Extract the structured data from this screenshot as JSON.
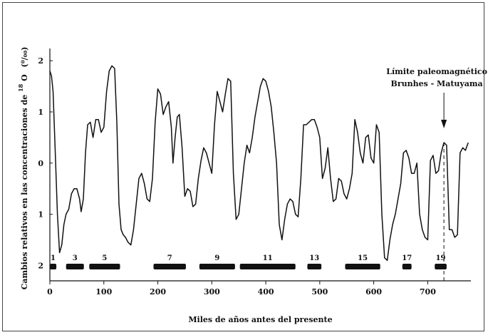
{
  "chart_data": {
    "type": "line",
    "title": "",
    "xlabel": "Miles de años antes del presente",
    "ylabel_main": "Cambios relativos en las concentraciones de",
    "ylabel_sup": "18",
    "ylabel_symbol": "O",
    "ylabel_unit": "(⁰/₀₀)",
    "xlim": [
      0,
      780
    ],
    "ylim": [
      -2.3,
      2.1
    ],
    "x_ticks": [
      0,
      100,
      200,
      300,
      400,
      500,
      600,
      700
    ],
    "x_tick_labels": [
      "0",
      "100",
      "200",
      "300",
      "400",
      "500",
      "600",
      "700"
    ],
    "y_ticks": [
      2,
      1,
      0,
      -1,
      -2
    ],
    "y_tick_labels": [
      "2",
      "1",
      "0",
      "1",
      "2"
    ],
    "annotation": {
      "line1": "Límite paleomagnético",
      "line2": "Brunhes - Matuyama",
      "x": 730
    },
    "stages": [
      {
        "label": "1",
        "start": 0,
        "end": 12
      },
      {
        "label": "3",
        "start": 30,
        "end": 63
      },
      {
        "label": "5",
        "start": 73,
        "end": 130
      },
      {
        "label": "7",
        "start": 192,
        "end": 252
      },
      {
        "label": "9",
        "start": 277,
        "end": 343
      },
      {
        "label": "11",
        "start": 352,
        "end": 455
      },
      {
        "label": "13",
        "start": 477,
        "end": 503
      },
      {
        "label": "15",
        "start": 547,
        "end": 612
      },
      {
        "label": "17",
        "start": 653,
        "end": 670
      },
      {
        "label": "19",
        "start": 713,
        "end": 735
      }
    ],
    "series": [
      {
        "x": [
          0,
          3,
          6,
          10,
          14,
          18,
          22,
          26,
          30,
          35,
          40,
          45,
          50,
          55,
          58,
          62,
          66,
          70,
          75,
          80,
          85,
          90,
          95,
          100,
          105,
          110,
          115,
          120,
          124,
          128,
          132,
          136,
          140,
          145,
          150,
          155,
          160,
          165,
          170,
          175,
          180,
          185,
          190,
          195,
          200,
          205,
          210,
          215,
          220,
          225,
          228,
          232,
          236,
          240,
          245,
          250,
          255,
          260,
          265,
          270,
          275,
          280,
          285,
          290,
          295,
          300,
          305,
          310,
          315,
          320,
          325,
          330,
          335,
          340,
          345,
          350,
          355,
          360,
          365,
          370,
          375,
          380,
          385,
          390,
          395,
          400,
          405,
          410,
          415,
          420,
          425,
          430,
          435,
          440,
          445,
          450,
          455,
          460,
          465,
          470,
          475,
          480,
          485,
          490,
          495,
          500,
          505,
          510,
          515,
          520,
          525,
          530,
          535,
          540,
          545,
          550,
          555,
          560,
          565,
          570,
          575,
          580,
          585,
          590,
          595,
          600,
          605,
          610,
          615,
          620,
          625,
          630,
          635,
          640,
          645,
          650,
          655,
          660,
          665,
          670,
          675,
          680,
          685,
          690,
          695,
          700,
          705,
          710,
          715,
          720,
          725,
          730,
          735,
          740,
          745,
          750,
          755,
          760,
          765,
          770,
          775
        ],
        "y": [
          1.8,
          1.7,
          1.4,
          0.2,
          -1.0,
          -1.75,
          -1.6,
          -1.2,
          -1.0,
          -0.9,
          -0.6,
          -0.5,
          -0.5,
          -0.7,
          -0.95,
          -0.7,
          0.2,
          0.75,
          0.8,
          0.5,
          0.85,
          0.85,
          0.6,
          0.7,
          1.4,
          1.8,
          1.9,
          1.85,
          0.8,
          -0.8,
          -1.3,
          -1.4,
          -1.45,
          -1.55,
          -1.6,
          -1.3,
          -0.8,
          -0.3,
          -0.2,
          -0.4,
          -0.7,
          -0.75,
          -0.3,
          0.8,
          1.45,
          1.35,
          0.95,
          1.1,
          1.2,
          0.7,
          0.0,
          0.5,
          0.9,
          0.95,
          0.3,
          -0.65,
          -0.5,
          -0.55,
          -0.85,
          -0.8,
          -0.3,
          0.05,
          0.3,
          0.2,
          0.0,
          -0.2,
          0.75,
          1.4,
          1.2,
          1.0,
          1.35,
          1.65,
          1.6,
          -0.2,
          -1.1,
          -1.0,
          -0.5,
          0.0,
          0.35,
          0.2,
          0.5,
          0.9,
          1.2,
          1.5,
          1.65,
          1.6,
          1.4,
          1.1,
          0.6,
          0.0,
          -1.2,
          -1.5,
          -1.1,
          -0.8,
          -0.7,
          -0.75,
          -1.0,
          -1.05,
          -0.3,
          0.75,
          0.75,
          0.8,
          0.85,
          0.85,
          0.7,
          0.5,
          -0.3,
          -0.1,
          0.3,
          -0.3,
          -0.75,
          -0.7,
          -0.3,
          -0.35,
          -0.6,
          -0.7,
          -0.5,
          -0.2,
          0.85,
          0.6,
          0.2,
          0.0,
          0.5,
          0.55,
          0.1,
          0.0,
          0.75,
          0.6,
          -1.0,
          -1.85,
          -1.9,
          -1.5,
          -1.2,
          -1.0,
          -0.7,
          -0.4,
          0.2,
          0.25,
          0.1,
          -0.2,
          -0.2,
          0.0,
          -1.0,
          -1.3,
          -1.45,
          -1.5,
          0.05,
          0.15,
          -0.2,
          -0.15,
          0.2,
          0.4,
          0.35,
          -1.3,
          -1.3,
          -1.45,
          -1.4,
          0.2,
          0.3,
          0.25,
          0.4
        ]
      }
    ]
  }
}
